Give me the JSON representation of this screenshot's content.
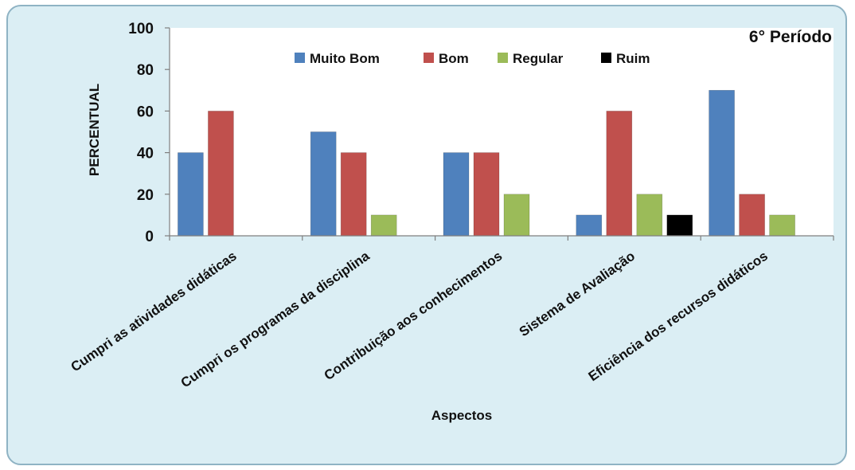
{
  "chart_data": {
    "type": "bar",
    "title": "6° Período",
    "xlabel": "Aspectos",
    "ylabel": "PERCENTUAL",
    "ylim": [
      0,
      100
    ],
    "yticks": [
      0,
      20,
      40,
      60,
      80,
      100
    ],
    "categories": [
      "Cumpri as atividades didáticas",
      "Cumpri os programas da disciplina",
      "Contribuição aos conhecimentos",
      "Sistema de Avaliação",
      "Eficiência dos recursos didáticos"
    ],
    "series": [
      {
        "name": "Muito Bom",
        "color": "#4f81bd",
        "values": [
          40,
          50,
          40,
          10,
          70
        ]
      },
      {
        "name": "Bom",
        "color": "#c0504d",
        "values": [
          60,
          40,
          40,
          60,
          20
        ]
      },
      {
        "name": "Regular",
        "color": "#9bbb59",
        "values": [
          0,
          10,
          20,
          20,
          10
        ]
      },
      {
        "name": "Ruim",
        "color": "#000000",
        "values": [
          0,
          0,
          0,
          10,
          0
        ]
      }
    ],
    "legend_position": "top",
    "grid": false
  }
}
